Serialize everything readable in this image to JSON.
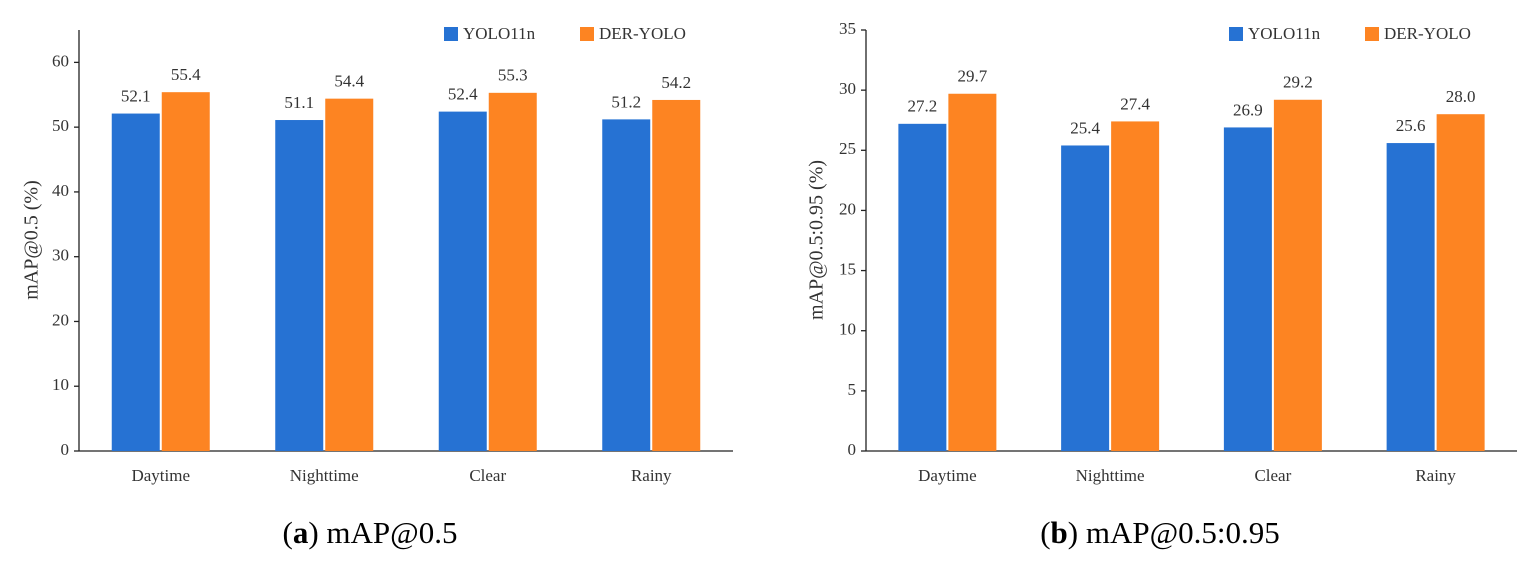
{
  "chart_data": [
    {
      "type": "bar",
      "caption_parts": [
        {
          "text": "(",
          "bold": false
        },
        {
          "text": "a",
          "bold": true
        },
        {
          "text": ") mAP@0.5",
          "bold": false
        }
      ],
      "y_label": "mAP@0.5 (%)",
      "categories": [
        "Daytime",
        "Nighttime",
        "Clear",
        "Rainy"
      ],
      "series": [
        {
          "name": "YOLO11n",
          "color": "#2672d3",
          "values": [
            52.1,
            51.1,
            52.4,
            51.2
          ],
          "value_labels": [
            "52.1",
            "51.1",
            "52.4",
            "51.2"
          ]
        },
        {
          "name": "DER-YOLO",
          "color": "#fd8422",
          "values": [
            55.4,
            54.4,
            55.3,
            54.2
          ],
          "value_labels": [
            "55.4",
            "54.4",
            "55.3",
            "54.2"
          ]
        }
      ],
      "ylim": [
        0,
        65
      ],
      "yticks": [
        0,
        10,
        20,
        30,
        40,
        50,
        60
      ],
      "grid": false,
      "legend": "top-right"
    },
    {
      "type": "bar",
      "caption_parts": [
        {
          "text": "(",
          "bold": false
        },
        {
          "text": "b",
          "bold": true
        },
        {
          "text": ") mAP@0.5:0.95",
          "bold": false
        }
      ],
      "y_label": "mAP@0.5:0.95 (%)",
      "categories": [
        "Daytime",
        "Nighttime",
        "Clear",
        "Rainy"
      ],
      "series": [
        {
          "name": "YOLO11n",
          "color": "#2672d3",
          "values": [
            27.2,
            25.4,
            26.9,
            25.6
          ],
          "value_labels": [
            "27.2",
            "25.4",
            "26.9",
            "25.6"
          ]
        },
        {
          "name": "DER-YOLO",
          "color": "#fd8422",
          "values": [
            29.7,
            27.4,
            29.2,
            28.0
          ],
          "value_labels": [
            "29.7",
            "27.4",
            "29.2",
            "28.0"
          ]
        }
      ],
      "ylim": [
        0,
        35
      ],
      "yticks": [
        0,
        5,
        10,
        15,
        20,
        25,
        30,
        35
      ],
      "grid": false,
      "legend": "top-right"
    }
  ]
}
